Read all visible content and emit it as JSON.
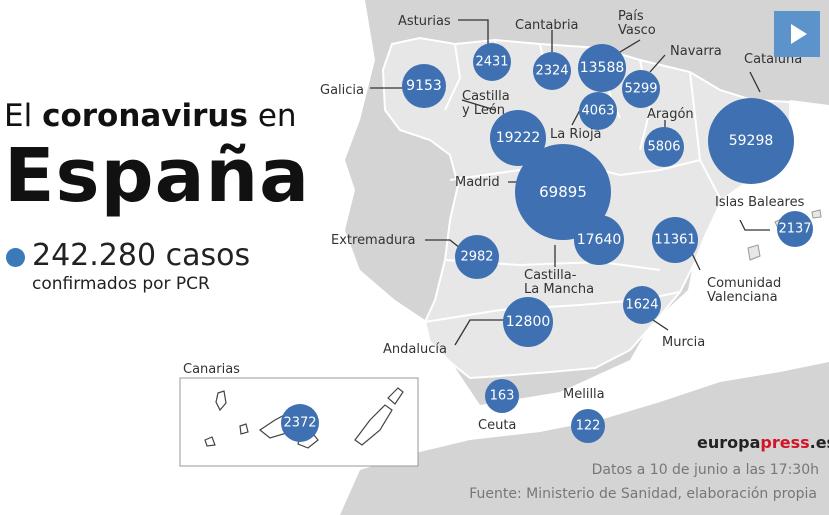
{
  "header": {
    "title_prefix": "El",
    "title_emphasis": "coronavirus",
    "title_suffix": "en",
    "country": "España"
  },
  "summary": {
    "cases": "242.280 casos",
    "subtitle": "confirmados por PCR",
    "dot_color": "#3a7ab8"
  },
  "map": {
    "bubble_color": "#3f70b2",
    "regions": [
      {
        "id": "galicia",
        "name": "Galicia",
        "value": "9153"
      },
      {
        "id": "asturias",
        "name": "Asturias",
        "value": "2431"
      },
      {
        "id": "cantabria",
        "name": "Cantabria",
        "value": "2324"
      },
      {
        "id": "pais-vasco",
        "name": "País\nVasco",
        "value": "13588"
      },
      {
        "id": "navarra",
        "name": "Navarra",
        "value": "5299"
      },
      {
        "id": "cataluna",
        "name": "Cataluña",
        "value": "59298"
      },
      {
        "id": "la-rioja",
        "name": "La Rioja",
        "value": "4063"
      },
      {
        "id": "aragon",
        "name": "Aragón",
        "value": "5806"
      },
      {
        "id": "castilla-leon",
        "name": "Castilla\ny León",
        "value": "19222"
      },
      {
        "id": "madrid",
        "name": "Madrid",
        "value": "69895"
      },
      {
        "id": "castilla-la-mancha",
        "name": "Castilla-\nLa Mancha",
        "value": "17640"
      },
      {
        "id": "extremadura",
        "name": "Extremadura",
        "value": "2982"
      },
      {
        "id": "comunidad-valenciana",
        "name": "Comunidad\nValenciana",
        "value": "11361"
      },
      {
        "id": "islas-baleares",
        "name": "Islas Baleares",
        "value": "2137"
      },
      {
        "id": "murcia",
        "name": "Murcia",
        "value": "1624"
      },
      {
        "id": "andalucia",
        "name": "Andalucía",
        "value": "12800"
      },
      {
        "id": "ceuta",
        "name": "Ceuta",
        "value": "163"
      },
      {
        "id": "melilla",
        "name": "Melilla",
        "value": "122"
      },
      {
        "id": "canarias",
        "name": "Canarias",
        "value": "2372"
      }
    ]
  },
  "footer": {
    "brand_main": "europa",
    "brand_accent": "press",
    "brand_tld": ".es",
    "date_note": "Datos a 10 de junio a las 17:30h",
    "source_note": "Fuente: Ministerio de Sanidad, elaboración propia"
  }
}
